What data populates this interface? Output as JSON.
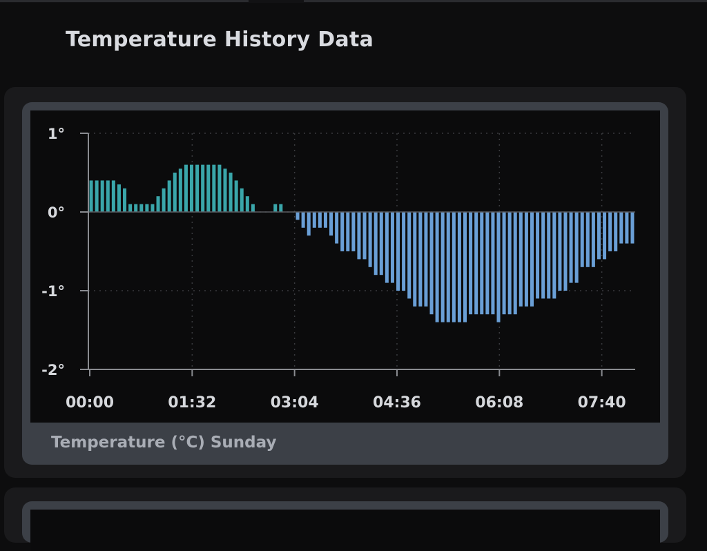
{
  "page": {
    "title": "Temperature History Data"
  },
  "colors": {
    "positive": "#3aa6aa",
    "negative": "#6a9fd6",
    "axis": "#8a8c91",
    "grid": "#3a3b3f",
    "tick_text": "#d6d8dc"
  },
  "chart_data": {
    "type": "bar",
    "title": "",
    "caption": "Temperature (°C) Sunday",
    "xlabel": "",
    "ylabel": "",
    "ylim": [
      -2,
      1
    ],
    "y_ticks": [
      1,
      0,
      -1,
      -2
    ],
    "y_tick_labels": [
      "1°",
      "0°",
      "-1°",
      "-2°"
    ],
    "x_ticks": [
      "00:00",
      "01:32",
      "03:04",
      "04:36",
      "06:08",
      "07:40"
    ],
    "x_tick_minutes": [
      0,
      92,
      184,
      276,
      368,
      460
    ],
    "x_max_minutes": 490,
    "grid": true,
    "values": [
      0.4,
      0.4,
      0.4,
      0.4,
      0.4,
      0.35,
      0.3,
      0.1,
      0.1,
      0.1,
      0.1,
      0.1,
      0.2,
      0.3,
      0.4,
      0.5,
      0.55,
      0.6,
      0.6,
      0.6,
      0.6,
      0.6,
      0.6,
      0.6,
      0.55,
      0.5,
      0.4,
      0.3,
      0.2,
      0.1,
      0,
      0,
      0,
      0.1,
      0.1,
      0,
      0,
      -0.1,
      -0.2,
      -0.3,
      -0.2,
      -0.2,
      -0.2,
      -0.3,
      -0.4,
      -0.5,
      -0.5,
      -0.5,
      -0.6,
      -0.6,
      -0.7,
      -0.8,
      -0.8,
      -0.9,
      -0.9,
      -1.0,
      -1.0,
      -1.1,
      -1.2,
      -1.2,
      -1.2,
      -1.3,
      -1.4,
      -1.4,
      -1.4,
      -1.4,
      -1.4,
      -1.4,
      -1.3,
      -1.3,
      -1.3,
      -1.3,
      -1.3,
      -1.4,
      -1.3,
      -1.3,
      -1.3,
      -1.2,
      -1.2,
      -1.2,
      -1.1,
      -1.1,
      -1.1,
      -1.1,
      -1.0,
      -1.0,
      -0.9,
      -0.9,
      -0.7,
      -0.7,
      -0.7,
      -0.6,
      -0.6,
      -0.5,
      -0.5,
      -0.4,
      -0.4,
      -0.4
    ]
  }
}
